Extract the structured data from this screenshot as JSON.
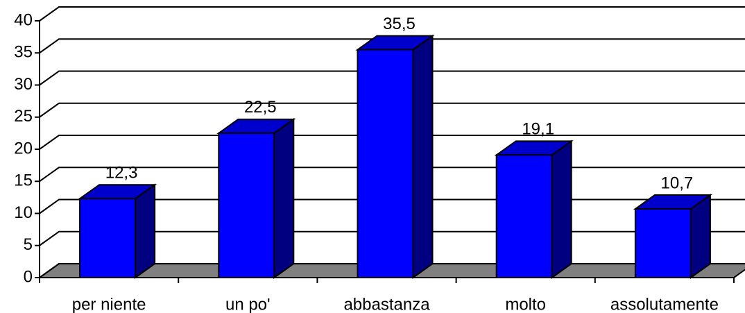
{
  "chart_data": {
    "type": "bar3d",
    "categories": [
      "per niente",
      "un po'",
      "abbastanza",
      "molto",
      "assolutamente"
    ],
    "values": [
      12.3,
      22.5,
      35.5,
      19.1,
      10.7
    ],
    "value_labels": [
      "12,3",
      "22,5",
      "35,5",
      "19,1",
      "10,7"
    ],
    "color": "#0000ff",
    "side_color": "#000080",
    "top_color": "#0000cc",
    "floor_color": "#808080",
    "ylim": [
      0,
      40
    ],
    "yticks": [
      0,
      5,
      10,
      15,
      20,
      25,
      30,
      35,
      40
    ],
    "grid": true
  }
}
